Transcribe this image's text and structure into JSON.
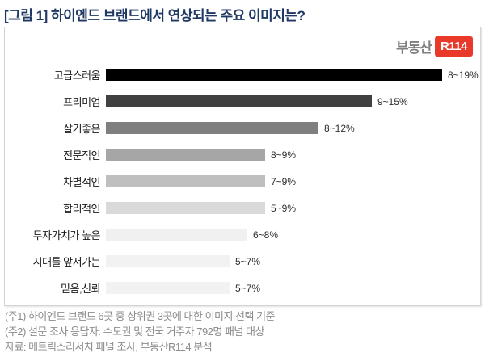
{
  "title": "[그림 1] 하이엔드 브랜드에서 연상되는 주요 이미지는?",
  "logo": {
    "prefix": "부동산",
    "badge": "R114",
    "badge_color": "#e8392b",
    "prefix_color": "#7f7f7f"
  },
  "chart_data": {
    "type": "bar",
    "orientation": "horizontal",
    "title": "[그림 1] 하이엔드 브랜드에서 연상되는 주요 이미지는?",
    "xlabel": "",
    "ylabel": "",
    "xlim": [
      0,
      21.5
    ],
    "grid": false,
    "legend": "none",
    "categories": [
      "고급스러움",
      "프리미엄",
      "살기좋은",
      "전문적인",
      "차별적인",
      "합리적인",
      "투자가치가 높은",
      "시대를 앞서가는",
      "믿음,신뢰"
    ],
    "rows": [
      {
        "label": "고급스러움",
        "range": "8~19%",
        "min": 8,
        "max": 19,
        "color": "#000000"
      },
      {
        "label": "프리미엄",
        "range": "9~15%",
        "min": 9,
        "max": 15,
        "color": "#404040"
      },
      {
        "label": "살기좋은",
        "range": "8~12%",
        "min": 8,
        "max": 12,
        "color": "#7f7f7f"
      },
      {
        "label": "전문적인",
        "range": "8~9%",
        "min": 8,
        "max": 9,
        "color": "#a6a6a6"
      },
      {
        "label": "차별적인",
        "range": "7~9%",
        "min": 7,
        "max": 9,
        "color": "#bfbfbf"
      },
      {
        "label": "합리적인",
        "range": "5~9%",
        "min": 5,
        "max": 9,
        "color": "#d9d9d9"
      },
      {
        "label": "투자가치가 높은",
        "range": "6~8%",
        "min": 6,
        "max": 8,
        "color": "#f0f0f0"
      },
      {
        "label": "시대를 앞서가는",
        "range": "5~7%",
        "min": 5,
        "max": 7,
        "color": "#f2f2f2"
      },
      {
        "label": "믿음,신뢰",
        "range": "5~7%",
        "min": 5,
        "max": 7,
        "color": "#f2f2f2"
      }
    ]
  },
  "footnotes": [
    "(주1) 하이엔드 브랜드 6곳 중 상위권 3곳에 대한 이미지 선택 기준",
    "(주2) 설문 조사 응답자: 수도권 및 전국 거주자 792명 패널 대상",
    "자료: 메트릭스리서치 패널 조사, 부동산R114 분석"
  ]
}
